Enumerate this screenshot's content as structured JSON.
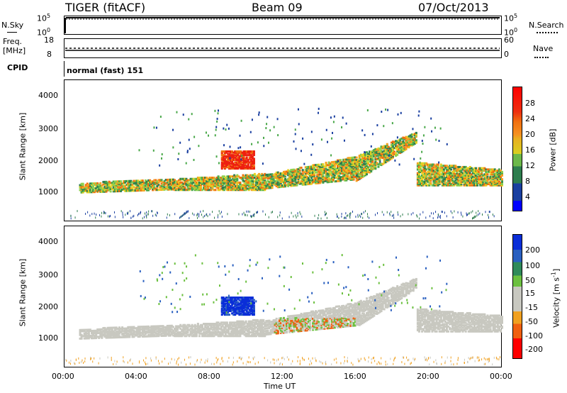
{
  "header": {
    "title": "TIGER (fitACF)",
    "beam": "Beam 09",
    "date": "07/Oct/2013"
  },
  "strip1": {
    "left_label": "N.Sky",
    "left_top": "10^5",
    "left_bottom": "10^0",
    "right_top": "10^5",
    "right_bottom": "10^0",
    "right_label": "N.Search"
  },
  "strip2": {
    "left_label_1": "Freq.",
    "left_label_2": "[MHz]",
    "left_top": "18",
    "left_bottom": "8",
    "right_top": "60",
    "right_bottom": "0",
    "right_label": "Nave"
  },
  "strip3": {
    "left_label": "CPID",
    "program": "normal (fast) 151"
  },
  "colors": {
    "background": "#ffffff",
    "ground_scatter": "#c8c8c0",
    "power_scale": [
      "#0000dd",
      "#1a3fa0",
      "#2e7d4e",
      "#4aa84a",
      "#8fd04e",
      "#e8d020",
      "#f5a020",
      "#f07010",
      "#ee2010",
      "#ff0000"
    ],
    "velocity_scale": [
      "#0a2ed8",
      "#2a60c0",
      "#2f8a5a",
      "#6cc040",
      "#c8c8c0",
      "#c8c8c0",
      "#f0a020",
      "#f06010",
      "#e82010",
      "#ff0000"
    ]
  },
  "chart_data": [
    {
      "type": "heatmap",
      "panel": "power",
      "title": "",
      "ylabel": "Slant Range [km]",
      "xlabel": "",
      "x_tick_labels": [
        "00:00",
        "04:00",
        "08:00",
        "12:00",
        "16:00",
        "20:00",
        "00:00"
      ],
      "y_tick_labels": [
        "1000",
        "2000",
        "3000",
        "4000"
      ],
      "ylim": [
        0,
        4600
      ],
      "xlim_hours": [
        0,
        24
      ],
      "colorbar": {
        "label": "Power [dB]",
        "tick_labels": [
          "4",
          "8",
          "12",
          "16",
          "20",
          "24",
          "28"
        ],
        "range": [
          0,
          32
        ]
      },
      "features": [
        {
          "desc": "main scatter band",
          "from_h": 1.0,
          "to_h": 24,
          "range_km_start": 1150,
          "range_km_end": 1400
        },
        {
          "desc": "strong patch near 09-10 UT",
          "time_h": 9.5,
          "range_km": 2000,
          "power_db": 30
        },
        {
          "desc": "arc rising to 2800 km near 19 UT",
          "time_h": 19,
          "range_km": 2800
        }
      ]
    },
    {
      "type": "heatmap",
      "panel": "velocity",
      "title": "",
      "ylabel": "Slant Range [km]",
      "xlabel": "Time UT",
      "x_tick_labels": [
        "00:00",
        "04:00",
        "08:00",
        "12:00",
        "16:00",
        "20:00",
        "00:00"
      ],
      "y_tick_labels": [
        "1000",
        "2000",
        "3000",
        "4000"
      ],
      "ylim": [
        0,
        4600
      ],
      "xlim_hours": [
        0,
        24
      ],
      "colorbar": {
        "label": "Velocity [m s^-1]",
        "tick_labels": [
          "200",
          "100",
          "50",
          "15",
          "-15",
          "-50",
          "-100",
          "-200"
        ]
      },
      "features": [
        {
          "desc": "ground scatter band",
          "from_h": 0,
          "to_h": 24,
          "range_km": 1100
        },
        {
          "desc": "positive velocity patch",
          "time_h": 9.2,
          "range_km": 2000,
          "velocity": 200
        },
        {
          "desc": "mixed velocity near 12-14 UT",
          "time_h": 13,
          "range_km": 1300
        }
      ]
    }
  ]
}
